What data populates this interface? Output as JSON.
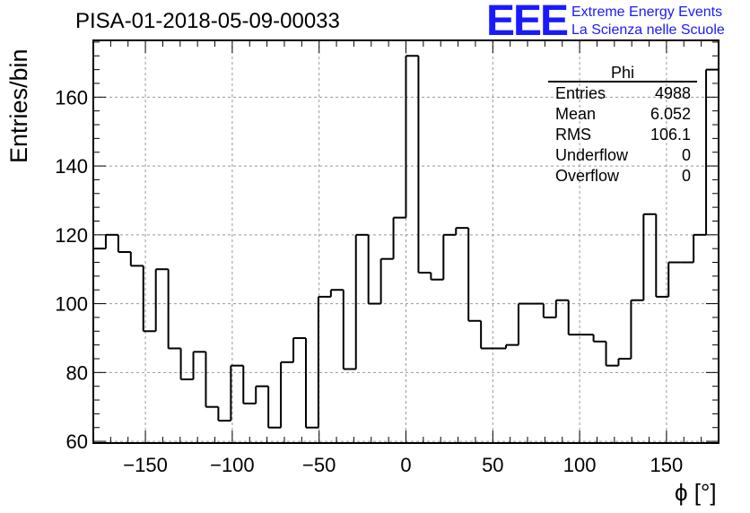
{
  "header": {
    "title": "PISA-01-2018-05-09-00033",
    "logo_text": "EEE",
    "logo_line1": "Extreme Energy Events",
    "logo_line2": "La Scienza nelle Scuole",
    "logo_color": "#1a1aff"
  },
  "stats": {
    "name": "Phi",
    "rows": [
      {
        "label": "Entries",
        "value": "4988"
      },
      {
        "label": "Mean",
        "value": "6.052"
      },
      {
        "label": "RMS",
        "value": "106.1"
      },
      {
        "label": "Underflow",
        "value": "0"
      },
      {
        "label": "Overflow",
        "value": "0"
      }
    ]
  },
  "chart_data": {
    "type": "bar",
    "title": "PISA-01-2018-05-09-00033",
    "xlabel": "ϕ [°]",
    "ylabel": "Entries/bin",
    "xlim": [
      -180,
      180
    ],
    "ylim": [
      59.5,
      176.5
    ],
    "bin_width": 7.2,
    "values": [
      116,
      120,
      115,
      111,
      92,
      110,
      87,
      78,
      86,
      70,
      66,
      82,
      71,
      76,
      64,
      83,
      90,
      64,
      102,
      104,
      81,
      120,
      100,
      113,
      125,
      172,
      109,
      107,
      120,
      122,
      95,
      87,
      87,
      88,
      100,
      100,
      96,
      101,
      91,
      91,
      89,
      82,
      84,
      101,
      126,
      102,
      112,
      112,
      120,
      168
    ],
    "x_ticks": [
      -150,
      -100,
      -50,
      0,
      50,
      100,
      150
    ],
    "x_tick_labels": [
      "−150",
      "−100",
      "−50",
      "0",
      "50",
      "100",
      "150"
    ],
    "y_ticks": [
      60,
      80,
      100,
      120,
      140,
      160
    ],
    "grid": true,
    "stat_box_placement": "top-right",
    "line_color": "#000000",
    "grid_color": "#999999"
  }
}
